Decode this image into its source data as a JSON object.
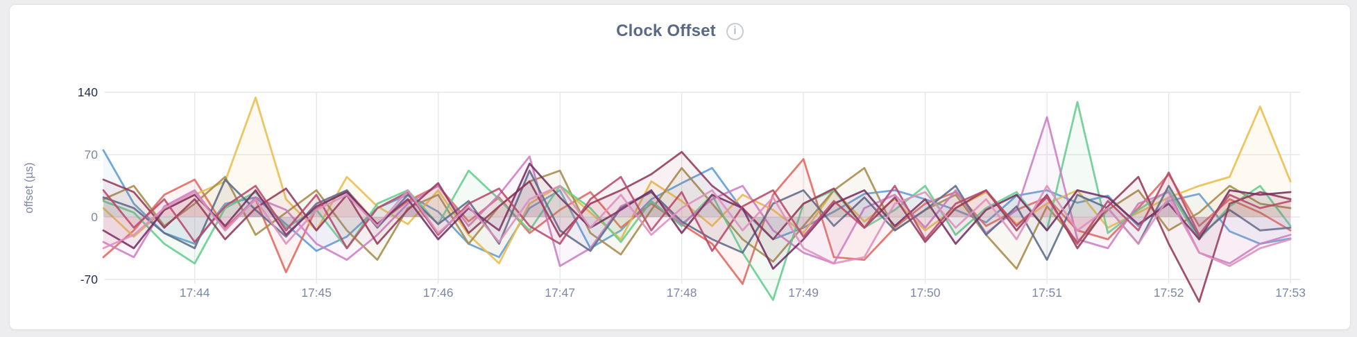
{
  "page": {
    "background_color": "#EDEDEF",
    "card_background_color": "#FFFFFF",
    "card_border_color": "#E2E2E5"
  },
  "header": {
    "title": "Clock Offset",
    "info_glyph": "i"
  },
  "chart_data": {
    "type": "line",
    "title": "Clock Offset",
    "xlabel": "",
    "ylabel": "offset (µs)",
    "x_start": "17:43:15",
    "x_step_seconds": 15,
    "x_tick_labels": [
      "17:44",
      "17:45",
      "17:46",
      "17:47",
      "17:48",
      "17:49",
      "17:50",
      "17:51",
      "17:52",
      "17:53"
    ],
    "y_ticks": [
      140,
      70,
      0,
      -70
    ],
    "y_tick_labels": [
      "140",
      "70",
      "0",
      "-70"
    ],
    "ylim": [
      -96,
      145
    ],
    "grid": true,
    "legend_position": "none",
    "style": {
      "grid_color": "#E7E7EA",
      "tick_label_color": "#7D88A2",
      "tick_label_color_extreme": "#21304F",
      "axis_label_color": "#7D88A2",
      "title_color": "#5A6A84",
      "line_width": 2.8,
      "area_fill_opacity": 0.07
    },
    "series": [
      {
        "name": "series-1",
        "color": "#5D9CD5",
        "values": [
          75,
          15,
          -18,
          -30,
          15,
          22,
          -8,
          -38,
          -22,
          10,
          25,
          6,
          -30,
          -45,
          10,
          30,
          -35,
          -15,
          20,
          38,
          55,
          8,
          -25,
          -12,
          6,
          26,
          30,
          20,
          8,
          -6,
          24,
          30,
          16,
          24,
          -10,
          18,
          26,
          -16,
          -30,
          -24
        ]
      },
      {
        "name": "series-2",
        "color": "#E2685C",
        "values": [
          -45,
          -15,
          25,
          42,
          -12,
          20,
          -62,
          10,
          30,
          -8,
          18,
          35,
          -5,
          22,
          -18,
          8,
          28,
          -12,
          15,
          -8,
          -30,
          -75,
          25,
          65,
          -45,
          -48,
          -12,
          15,
          28,
          -10,
          8,
          22,
          -15,
          -25,
          10,
          48,
          -10,
          20,
          5,
          -15
        ]
      },
      {
        "name": "series-3",
        "color": "#EABD4B",
        "values": [
          10,
          -22,
          8,
          25,
          40,
          134,
          20,
          -15,
          45,
          12,
          -8,
          30,
          -20,
          -52,
          15,
          35,
          5,
          -25,
          40,
          18,
          -10,
          25,
          8,
          -18,
          30,
          -5,
          20,
          -15,
          10,
          28,
          -8,
          15,
          30,
          -12,
          5,
          22,
          35,
          45,
          124,
          40
        ]
      },
      {
        "name": "series-4",
        "color": "#A68B4B",
        "values": [
          20,
          35,
          -10,
          15,
          45,
          -20,
          5,
          30,
          -15,
          -48,
          10,
          25,
          -30,
          12,
          40,
          52,
          -18,
          -42,
          8,
          55,
          15,
          -25,
          -50,
          -10,
          30,
          55,
          -15,
          8,
          25,
          -20,
          -58,
          12,
          -28,
          8,
          30,
          -15,
          5,
          35,
          15,
          10
        ]
      },
      {
        "name": "series-5",
        "color": "#65CD8D",
        "values": [
          18,
          5,
          -30,
          -52,
          10,
          28,
          -12,
          8,
          -35,
          15,
          30,
          -8,
          52,
          20,
          -15,
          35,
          10,
          -28,
          18,
          -10,
          25,
          -40,
          -93,
          15,
          30,
          -12,
          8,
          35,
          -20,
          10,
          28,
          -15,
          129,
          -18,
          8,
          30,
          -25,
          12,
          35,
          -10
        ]
      },
      {
        "name": "series-6",
        "color": "#CC7EC4",
        "values": [
          -28,
          -45,
          12,
          30,
          -15,
          22,
          8,
          -30,
          -48,
          -20,
          15,
          35,
          -10,
          25,
          68,
          -55,
          -35,
          12,
          28,
          -8,
          20,
          35,
          -15,
          -40,
          -52,
          10,
          25,
          -12,
          30,
          -18,
          8,
          112,
          -25,
          -35,
          15,
          28,
          -40,
          -52,
          -30,
          -20
        ]
      },
      {
        "name": "series-7",
        "color": "#5D6C8A",
        "values": [
          22,
          10,
          -18,
          -35,
          42,
          8,
          -22,
          15,
          30,
          -12,
          25,
          -8,
          18,
          -30,
          52,
          -15,
          -38,
          10,
          28,
          -5,
          -25,
          -40,
          15,
          30,
          -10,
          22,
          -15,
          8,
          35,
          -20,
          12,
          -48,
          25,
          10,
          -30,
          35,
          -22,
          8,
          -15,
          -12
        ]
      },
      {
        "name": "series-8",
        "color": "#93395A",
        "values": [
          42,
          28,
          -12,
          20,
          -25,
          10,
          32,
          -15,
          25,
          -30,
          8,
          38,
          -18,
          12,
          40,
          -22,
          15,
          30,
          48,
          73,
          35,
          10,
          -25,
          15,
          32,
          -12,
          22,
          -28,
          10,
          30,
          -15,
          25,
          -35,
          12,
          45,
          -30,
          -95,
          15,
          28,
          20
        ]
      },
      {
        "name": "series-9",
        "color": "#752E62",
        "values": [
          -15,
          -35,
          8,
          25,
          -10,
          30,
          -20,
          12,
          28,
          -8,
          20,
          -25,
          10,
          -15,
          60,
          22,
          -12,
          8,
          30,
          -18,
          25,
          10,
          -58,
          -25,
          15,
          30,
          -10,
          20,
          -30,
          8,
          25,
          -15,
          30,
          22,
          -8,
          15,
          -25,
          30,
          25,
          28
        ]
      },
      {
        "name": "series-10",
        "color": "#B8496B",
        "values": [
          30,
          -12,
          20,
          -28,
          12,
          35,
          -15,
          25,
          -35,
          10,
          28,
          -20,
          15,
          32,
          -10,
          -30,
          20,
          45,
          -15,
          28,
          -38,
          12,
          30,
          -22,
          18,
          -12,
          35,
          -25,
          15,
          30,
          -10,
          22,
          -30,
          18,
          -15,
          50,
          -20,
          25,
          10,
          18
        ]
      },
      {
        "name": "series-11",
        "color": "#DD8FBE",
        "values": [
          -35,
          -20,
          10,
          28,
          -15,
          20,
          -30,
          8,
          25,
          -10,
          30,
          -18,
          12,
          -28,
          20,
          35,
          -12,
          25,
          -20,
          10,
          30,
          -15,
          22,
          -35,
          -52,
          -45,
          15,
          28,
          -12,
          20,
          -25,
          35,
          -15,
          10,
          -30,
          22,
          -40,
          -55,
          -35,
          -25
        ]
      }
    ]
  }
}
